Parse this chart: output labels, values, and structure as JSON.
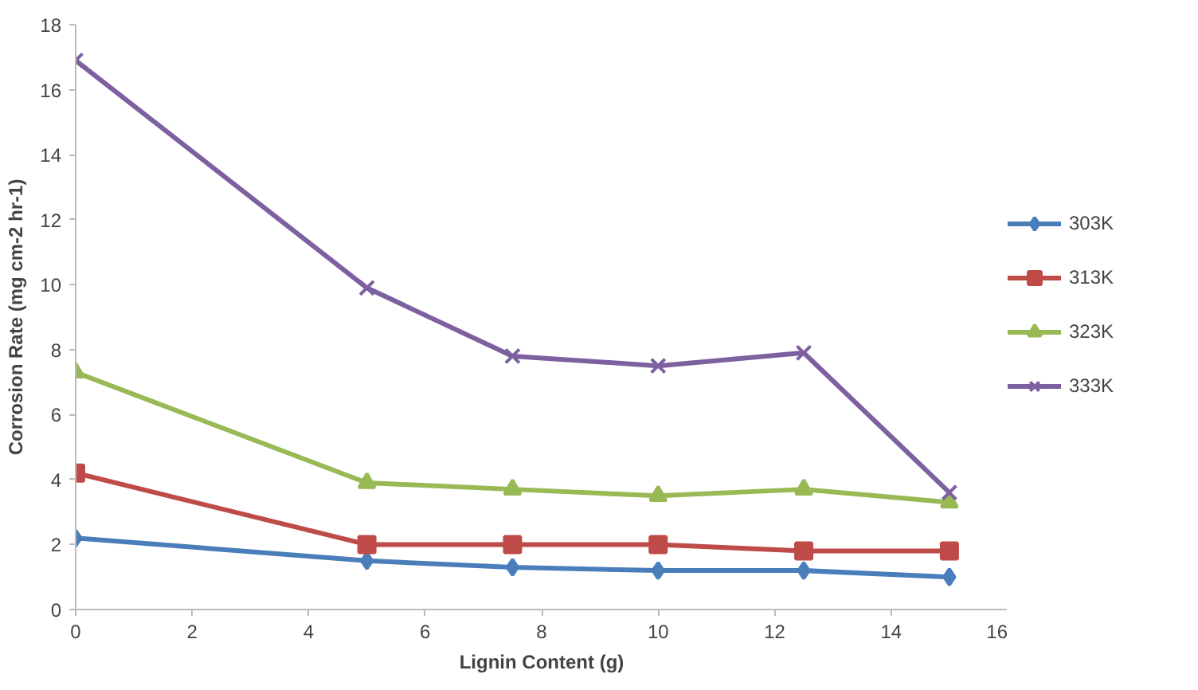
{
  "chart_data": {
    "type": "line",
    "xlabel": "Lignin Content (g)",
    "ylabel": "Corrosion Rate (mg cm-2 hr-1)",
    "x": [
      0,
      5,
      7.5,
      10,
      12.5,
      15
    ],
    "series": [
      {
        "name": "303K",
        "color": "#4a7ebb",
        "marker": "diamond",
        "values": [
          2.2,
          1.5,
          1.3,
          1.2,
          1.2,
          1.0
        ]
      },
      {
        "name": "313K",
        "color": "#be4b48",
        "marker": "square",
        "values": [
          4.2,
          2.0,
          2.0,
          2.0,
          1.8,
          1.8
        ]
      },
      {
        "name": "323K",
        "color": "#98b954",
        "marker": "triangle",
        "values": [
          7.3,
          3.9,
          3.7,
          3.5,
          3.7,
          3.3
        ]
      },
      {
        "name": "333K",
        "color": "#7d60a0",
        "marker": "cross",
        "values": [
          16.9,
          9.9,
          7.8,
          7.5,
          7.9,
          3.6
        ]
      }
    ],
    "xlim": [
      0,
      16
    ],
    "xticks": [
      0,
      2,
      4,
      6,
      8,
      10,
      12,
      14,
      16
    ],
    "ylim": [
      0,
      18
    ],
    "yticks": [
      0,
      2,
      4,
      6,
      8,
      10,
      12,
      14,
      16,
      18
    ],
    "grid": false,
    "legend": "right"
  }
}
